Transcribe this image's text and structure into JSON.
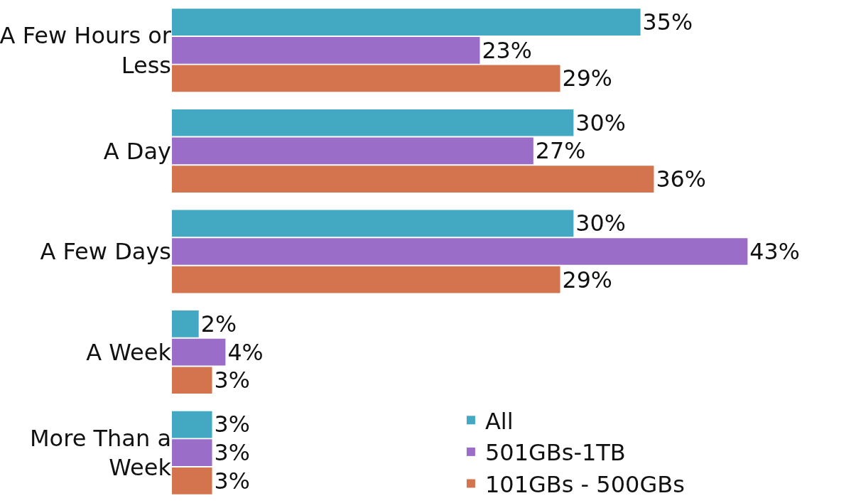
{
  "chart_data": {
    "type": "bar",
    "orientation": "horizontal",
    "categories": [
      "A Few Hours or Less",
      "A Day",
      "A Few Days",
      "A Week",
      "More Than a Week"
    ],
    "series": [
      {
        "name": "All",
        "color": "#43a9c2",
        "values": [
          35,
          30,
          30,
          2,
          3
        ],
        "value_labels": [
          "35%",
          "30%",
          "30%",
          "2%",
          "3%"
        ]
      },
      {
        "name": "501GBs-1TB",
        "color": "#9a6dc8",
        "values": [
          23,
          27,
          43,
          4,
          3
        ],
        "value_labels": [
          "23%",
          "27%",
          "43%",
          "4%",
          "3%"
        ]
      },
      {
        "name": "101GBs - 500GBs",
        "color": "#d3744e",
        "values": [
          29,
          36,
          29,
          3,
          3
        ],
        "value_labels": [
          "29%",
          "36%",
          "29%",
          "3%",
          "3%"
        ]
      }
    ],
    "legend": "bottom right",
    "tick_labels": "y",
    "grid": false
  }
}
